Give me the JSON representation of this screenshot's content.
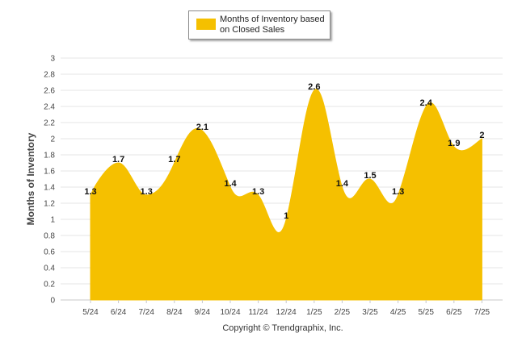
{
  "chart_data": {
    "type": "area",
    "categories": [
      "5/24",
      "6/24",
      "7/24",
      "8/24",
      "9/24",
      "10/24",
      "11/24",
      "12/24",
      "1/25",
      "2/25",
      "3/25",
      "4/25",
      "5/25",
      "6/25",
      "7/25"
    ],
    "series": [
      {
        "name": "Months of Inventory based on Closed Sales",
        "values": [
          1.3,
          1.7,
          1.3,
          1.7,
          2.1,
          1.4,
          1.3,
          1,
          2.6,
          1.4,
          1.5,
          1.3,
          2.4,
          1.9,
          2
        ],
        "color": "#F5C000"
      }
    ],
    "data_labels": [
      "1.3",
      "1.7",
      "1.3",
      "1.7",
      "2.1",
      "1.4",
      "1.3",
      "1",
      "2.6",
      "1.4",
      "1.5",
      "1.3",
      "2.4",
      "1.9",
      "2"
    ],
    "ylabel": "Months of Inventory",
    "xlabel": "",
    "ylim": [
      0,
      3
    ],
    "yticks": [
      "0",
      "0.2",
      "0.4",
      "0.6",
      "0.8",
      "1",
      "1.2",
      "1.4",
      "1.6",
      "1.8",
      "2",
      "2.2",
      "2.4",
      "2.6",
      "2.8",
      "3"
    ],
    "yticks_values": [
      0,
      0.2,
      0.4,
      0.6,
      0.8,
      1,
      1.2,
      1.4,
      1.6,
      1.8,
      2,
      2.2,
      2.4,
      2.6,
      2.8,
      3
    ],
    "grid": true,
    "legend_position": "top-center"
  },
  "legend": {
    "label": "Months of Inventory based on Closed Sales"
  },
  "footer": {
    "copyright": "Copyright © Trendgraphix, Inc."
  },
  "colors": {
    "series": "#F5C000",
    "grid": "#e6e6e6",
    "axis_text": "#444444"
  }
}
